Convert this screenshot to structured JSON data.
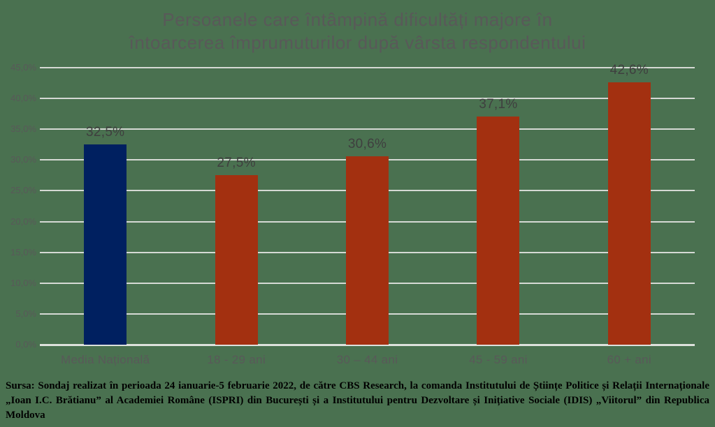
{
  "title": "Persoanele care întâmpină dificultăți majore în\nîntoarcerea împrumuturilor după vârsta respondentului",
  "source_note": "Sursa: Sondaj realizat în perioada 24 ianuarie-5 februarie 2022, de către CBS Research, la comanda Institutului de Științe Politice și Relații Internaționale „Ioan I.C. Brătianu” al Academiei Române (ISPRI) din București și a Institutului pentru Dezvoltare și Inițiative Sociale (IDIS) „Viitorul” din Republica Moldova",
  "colors": {
    "background": "#4a7150",
    "title_text": "#595959",
    "axis_text": "#595959",
    "value_text": "#3f3f3f",
    "gridline": "#d5d9d4",
    "baseline": "#dde1dc",
    "source_text": "#000000",
    "national_average_bar": "#002060",
    "age_group_bar": "#a33010"
  },
  "chart_data": {
    "type": "bar",
    "title": "Persoanele care întâmpină dificultăți majore în întoarcerea împrumuturilor după vârsta respondentului",
    "categories": [
      "Media Națională",
      "18 - 29 ani",
      "30 – 44 ani",
      "45 - 59 ani",
      "60 + ani"
    ],
    "values": [
      32.5,
      27.5,
      30.6,
      37.1,
      42.6
    ],
    "value_labels": [
      "32,5%",
      "27,5%",
      "30,6%",
      "37,1%",
      "42,6%"
    ],
    "bar_colors": [
      "#002060",
      "#a33010",
      "#a33010",
      "#a33010",
      "#a33010"
    ],
    "xlabel": "",
    "ylabel": "",
    "ylim": [
      0,
      45
    ],
    "ytick_step": 5,
    "ytick_labels": [
      "0,0%",
      "5,0%",
      "10,0%",
      "15,0%",
      "20,0%",
      "25,0%",
      "30,0%",
      "35,0%",
      "40,0%",
      "45,0%"
    ],
    "grid": true,
    "legend": false
  }
}
